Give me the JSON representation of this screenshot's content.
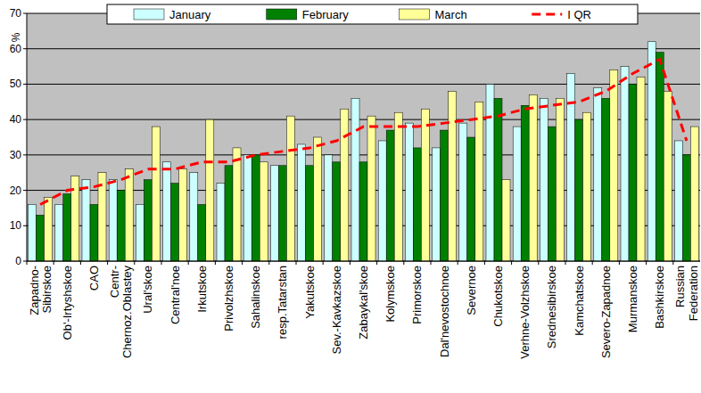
{
  "chart_data": {
    "type": "bar",
    "y_label": "%",
    "categories": [
      "Zapadno-\nSibirskoe",
      "Ob'-Irtyshskoe",
      "CAO",
      "Centr-\nChernoz.Oblastey",
      "Ural'skoe",
      "Central'noe",
      "Irkutskoe",
      "Privolzhskoe",
      "Sahalinskoe",
      "resp.Tatarstan",
      "Yakutskoe",
      "Sev.-Kavkazskoe",
      "Zabaykal'skoe",
      "Kolymskoe",
      "Primorskoe",
      "Dal'nevostochnoe",
      "Severnoe",
      "Chukotskoe",
      "Verhne-Volzhskoe",
      "Srednesibirskoe",
      "Kamchatskoe",
      "Severo-Zapadnoe",
      "Murmanskoe",
      "Bashkirskoe",
      "Russian\nFederation"
    ],
    "series": [
      {
        "name": "January",
        "type": "bar",
        "color": "#ccffff",
        "values": [
          16,
          16,
          23,
          23,
          16,
          28,
          25,
          22,
          30,
          27,
          33,
          30,
          46,
          34,
          39,
          32,
          39,
          50,
          38,
          46,
          53,
          49,
          55,
          62,
          34
        ]
      },
      {
        "name": "February",
        "type": "bar",
        "color": "#008000",
        "values": [
          13,
          19,
          16,
          20,
          23,
          22,
          16,
          27,
          30,
          27,
          27,
          28,
          28,
          37,
          32,
          37,
          35,
          46,
          44,
          38,
          40,
          46,
          50,
          59,
          30
        ]
      },
      {
        "name": "March",
        "type": "bar",
        "color": "#ffff99",
        "values": [
          18,
          24,
          25,
          26,
          38,
          26,
          40,
          32,
          28,
          41,
          35,
          43,
          41,
          42,
          43,
          48,
          45,
          23,
          47,
          46,
          42,
          54,
          52,
          48,
          38
        ]
      },
      {
        "name": "I QR",
        "type": "line",
        "color": "#ff0000",
        "line_style": "dashed",
        "values": [
          16,
          20,
          21,
          23,
          26,
          26,
          28,
          28,
          30,
          31,
          32,
          34,
          38,
          38,
          38,
          39,
          40,
          41,
          43,
          44,
          45,
          48,
          53,
          57,
          34
        ]
      }
    ],
    "ylim": [
      0,
      70
    ],
    "yticks": [
      0,
      10,
      20,
      30,
      40,
      50,
      60,
      70
    ],
    "grid": true,
    "legend": "top"
  }
}
